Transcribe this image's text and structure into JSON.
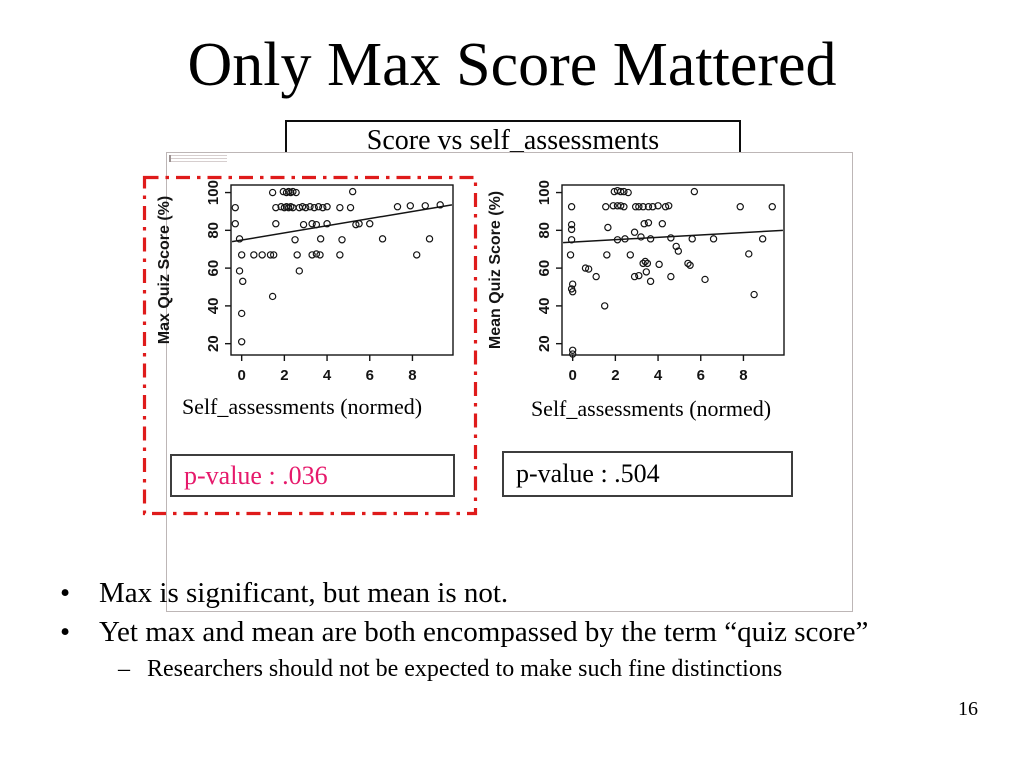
{
  "slide": {
    "title": "Only Max Score Mattered",
    "score_box_label": "Score vs self_assessments",
    "page_number": "16",
    "bullets": [
      {
        "marker": "•",
        "text": "Max is significant, but mean is not."
      },
      {
        "marker": "•",
        "text": "Yet max and mean are both encompassed by the term “quiz score”"
      },
      {
        "marker": "–",
        "text": "Researchers should not be expected to make such fine distinctions"
      }
    ],
    "colors": {
      "highlight_red": "#df1b1b",
      "pvalue_pink": "#e6196b",
      "panel_border_gray": "#bdb6b6"
    }
  },
  "chart_data": [
    {
      "type": "scatter",
      "title": "Score vs self_assessments",
      "xlabel": "Self_assessments (normed)",
      "ylabel": "Max Quiz Score (%)",
      "xticks": [
        0,
        2,
        4,
        6,
        8
      ],
      "yticks": [
        20,
        40,
        60,
        80,
        100
      ],
      "xlim": [
        -0.5,
        9.9
      ],
      "ylim": [
        14,
        104
      ],
      "grid": false,
      "p_value_label": "p-value : .036",
      "p_value": 0.036,
      "highlighted": true,
      "trend_line": [
        [
          -0.45,
          74
        ],
        [
          9.85,
          93.5
        ]
      ],
      "points": [
        [
          1.45,
          100
        ],
        [
          1.95,
          100.5
        ],
        [
          2.1,
          100
        ],
        [
          2.2,
          100.5
        ],
        [
          2.3,
          100
        ],
        [
          2.4,
          100.5
        ],
        [
          2.55,
          100
        ],
        [
          5.2,
          100.5
        ],
        [
          -0.3,
          92
        ],
        [
          1.6,
          92
        ],
        [
          1.85,
          92.5
        ],
        [
          2.0,
          92
        ],
        [
          2.1,
          92.5
        ],
        [
          2.2,
          92
        ],
        [
          2.3,
          92.5
        ],
        [
          2.4,
          92
        ],
        [
          2.7,
          92
        ],
        [
          2.85,
          92.5
        ],
        [
          3.0,
          92
        ],
        [
          3.2,
          92.5
        ],
        [
          3.4,
          92
        ],
        [
          3.6,
          92.5
        ],
        [
          3.8,
          92
        ],
        [
          4.0,
          92.5
        ],
        [
          4.6,
          92
        ],
        [
          5.1,
          92
        ],
        [
          7.3,
          92.5
        ],
        [
          7.9,
          93
        ],
        [
          8.6,
          93
        ],
        [
          9.3,
          93.5
        ],
        [
          -0.3,
          83.5
        ],
        [
          1.6,
          83.5
        ],
        [
          2.9,
          83
        ],
        [
          3.3,
          83.5
        ],
        [
          3.5,
          83
        ],
        [
          4.0,
          83.5
        ],
        [
          5.35,
          83
        ],
        [
          5.5,
          83.5
        ],
        [
          6.0,
          83.5
        ],
        [
          -0.1,
          75.5
        ],
        [
          2.5,
          75
        ],
        [
          3.7,
          75.5
        ],
        [
          4.7,
          75
        ],
        [
          6.6,
          75.5
        ],
        [
          8.8,
          75.5
        ],
        [
          0,
          67
        ],
        [
          0.57,
          67
        ],
        [
          0.96,
          67
        ],
        [
          1.35,
          67
        ],
        [
          1.5,
          67
        ],
        [
          2.6,
          67
        ],
        [
          3.3,
          67
        ],
        [
          3.5,
          67.5
        ],
        [
          3.67,
          67
        ],
        [
          4.6,
          67
        ],
        [
          8.2,
          67
        ],
        [
          -0.1,
          58.5
        ],
        [
          2.7,
          58.5
        ],
        [
          0.05,
          53
        ],
        [
          1.45,
          45
        ],
        [
          0,
          36
        ],
        [
          0,
          21
        ]
      ]
    },
    {
      "type": "scatter",
      "title": "Score vs self_assessments",
      "xlabel": "Self_assessments (normed)",
      "ylabel": "Mean Quiz Score (%)",
      "xticks": [
        0,
        2,
        4,
        6,
        8
      ],
      "yticks": [
        20,
        40,
        60,
        80,
        100
      ],
      "xlim": [
        -0.5,
        9.9
      ],
      "ylim": [
        14,
        104
      ],
      "grid": false,
      "p_value_label": "p-value : .504",
      "p_value": 0.504,
      "highlighted": false,
      "trend_line": [
        [
          -0.45,
          73.5
        ],
        [
          9.85,
          80
        ]
      ],
      "points": [
        [
          1.95,
          100.5
        ],
        [
          2.1,
          101
        ],
        [
          2.25,
          100.5
        ],
        [
          2.4,
          100.5
        ],
        [
          2.6,
          100
        ],
        [
          5.7,
          100.5
        ],
        [
          -0.05,
          92.5
        ],
        [
          1.55,
          92.5
        ],
        [
          1.9,
          93
        ],
        [
          2.1,
          93
        ],
        [
          2.25,
          93
        ],
        [
          2.4,
          92.5
        ],
        [
          2.95,
          92.5
        ],
        [
          3.1,
          92.5
        ],
        [
          3.3,
          92.5
        ],
        [
          3.55,
          92.5
        ],
        [
          3.75,
          92.5
        ],
        [
          4.0,
          93
        ],
        [
          4.35,
          92.5
        ],
        [
          4.5,
          93
        ],
        [
          7.85,
          92.5
        ],
        [
          9.35,
          92.5
        ],
        [
          -0.05,
          83
        ],
        [
          -0.05,
          80.5
        ],
        [
          1.65,
          81.5
        ],
        [
          3.35,
          83.5
        ],
        [
          3.55,
          84
        ],
        [
          4.2,
          83.5
        ],
        [
          2.9,
          79
        ],
        [
          -0.05,
          75
        ],
        [
          2.1,
          75
        ],
        [
          2.45,
          75.5
        ],
        [
          3.2,
          76.5
        ],
        [
          3.65,
          75.5
        ],
        [
          4.6,
          76
        ],
        [
          5.6,
          75.5
        ],
        [
          6.6,
          75.5
        ],
        [
          8.9,
          75.5
        ],
        [
          4.85,
          71.5
        ],
        [
          4.95,
          69
        ],
        [
          -0.1,
          67
        ],
        [
          1.6,
          67
        ],
        [
          2.7,
          67
        ],
        [
          8.25,
          67.5
        ],
        [
          3.3,
          62.5
        ],
        [
          3.4,
          63.5
        ],
        [
          3.5,
          62.5
        ],
        [
          4.05,
          62
        ],
        [
          5.4,
          62.5
        ],
        [
          5.5,
          61.5
        ],
        [
          0.6,
          60
        ],
        [
          0.75,
          59.5
        ],
        [
          3.45,
          58
        ],
        [
          1.1,
          55.5
        ],
        [
          2.9,
          55.5
        ],
        [
          3.1,
          56
        ],
        [
          3.65,
          53
        ],
        [
          4.6,
          55.5
        ],
        [
          6.2,
          54
        ],
        [
          0,
          51.5
        ],
        [
          -0.05,
          49
        ],
        [
          0,
          47.5
        ],
        [
          8.5,
          46
        ],
        [
          1.5,
          40
        ],
        [
          0,
          16.5
        ],
        [
          0,
          14.5
        ]
      ]
    }
  ]
}
